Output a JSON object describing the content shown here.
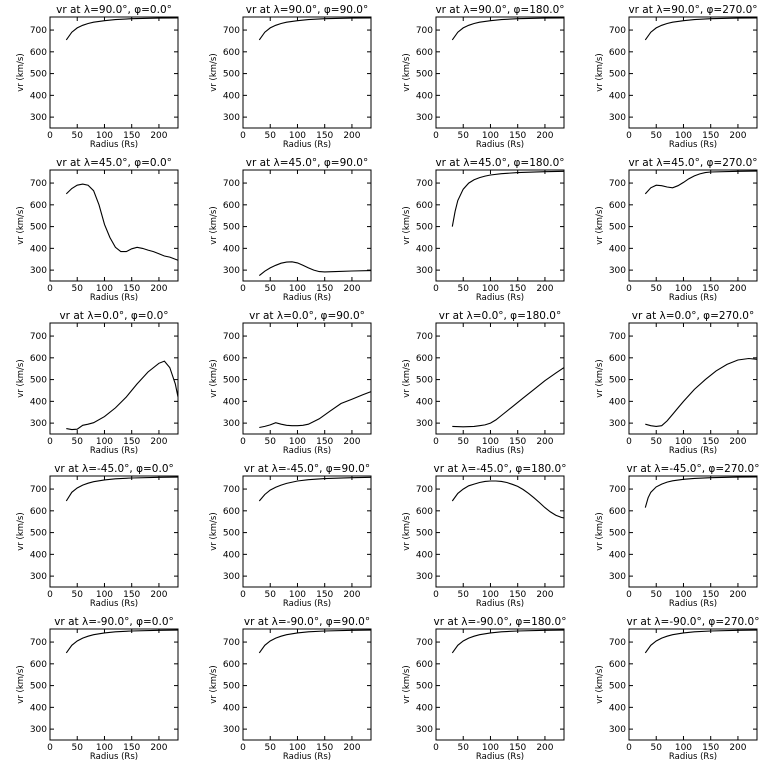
{
  "chart_data": {
    "type": "line",
    "layout": "5 rows x 4 columns of small multiples",
    "xlabel": "Radius (Rs)",
    "ylabel": "vr (km/s)",
    "xlim": [
      0,
      235
    ],
    "ylim": [
      250,
      760
    ],
    "xticks": [
      0,
      50,
      100,
      150,
      200
    ],
    "yticks": [
      300,
      400,
      500,
      600,
      700
    ],
    "panels": [
      {
        "title": "vr at λ=90.0°, φ=0.0°",
        "x": [
          30,
          40,
          50,
          60,
          70,
          80,
          100,
          120,
          150,
          200,
          235
        ],
        "y": [
          655,
          690,
          710,
          722,
          730,
          736,
          743,
          748,
          752,
          755,
          756
        ]
      },
      {
        "title": "vr at λ=90.0°, φ=90.0°",
        "x": [
          30,
          40,
          50,
          60,
          70,
          80,
          100,
          120,
          150,
          200,
          235
        ],
        "y": [
          655,
          690,
          710,
          722,
          730,
          736,
          743,
          748,
          752,
          755,
          756
        ]
      },
      {
        "title": "vr at λ=90.0°, φ=180.0°",
        "x": [
          30,
          40,
          50,
          60,
          70,
          80,
          100,
          120,
          150,
          200,
          235
        ],
        "y": [
          655,
          690,
          710,
          722,
          730,
          736,
          743,
          748,
          752,
          755,
          756
        ]
      },
      {
        "title": "vr at λ=90.0°, φ=270.0°",
        "x": [
          30,
          40,
          50,
          60,
          70,
          80,
          100,
          120,
          150,
          200,
          235
        ],
        "y": [
          655,
          690,
          710,
          722,
          730,
          736,
          743,
          748,
          752,
          755,
          756
        ]
      },
      {
        "title": "vr at λ=45.0°, φ=0.0°",
        "x": [
          30,
          40,
          50,
          60,
          70,
          80,
          90,
          100,
          110,
          120,
          130,
          140,
          150,
          160,
          170,
          180,
          190,
          200,
          210,
          220,
          235
        ],
        "y": [
          650,
          675,
          690,
          695,
          690,
          665,
          600,
          510,
          450,
          405,
          385,
          385,
          398,
          405,
          400,
          392,
          385,
          375,
          365,
          360,
          345
        ]
      },
      {
        "title": "vr at λ=45.0°, φ=90.0°",
        "x": [
          30,
          40,
          50,
          60,
          70,
          80,
          90,
          100,
          110,
          120,
          130,
          140,
          150,
          170,
          200,
          235
        ],
        "y": [
          275,
          295,
          310,
          322,
          332,
          337,
          338,
          333,
          322,
          310,
          300,
          293,
          292,
          293,
          296,
          298
        ]
      },
      {
        "title": "vr at λ=45.0°, φ=180.0°",
        "x": [
          30,
          35,
          40,
          50,
          60,
          70,
          80,
          90,
          100,
          120,
          150,
          200,
          235
        ],
        "y": [
          500,
          570,
          620,
          672,
          700,
          715,
          725,
          732,
          737,
          743,
          748,
          752,
          754
        ]
      },
      {
        "title": "vr at λ=45.0°, φ=270.0°",
        "x": [
          30,
          40,
          50,
          60,
          70,
          80,
          90,
          100,
          110,
          120,
          130,
          140,
          150,
          200,
          235
        ],
        "y": [
          650,
          678,
          690,
          688,
          682,
          678,
          688,
          703,
          720,
          733,
          742,
          748,
          751,
          754,
          755
        ]
      },
      {
        "title": "vr at λ=0.0°, φ=0.0°",
        "x": [
          30,
          40,
          50,
          60,
          70,
          80,
          100,
          120,
          140,
          160,
          180,
          200,
          210,
          220,
          230,
          235
        ],
        "y": [
          275,
          270,
          272,
          290,
          295,
          302,
          330,
          370,
          420,
          480,
          535,
          575,
          585,
          555,
          480,
          420
        ]
      },
      {
        "title": "vr at λ=0.0°, φ=90.0°",
        "x": [
          30,
          40,
          50,
          60,
          70,
          80,
          90,
          100,
          110,
          120,
          140,
          160,
          180,
          200,
          220,
          235
        ],
        "y": [
          280,
          285,
          292,
          302,
          295,
          290,
          288,
          288,
          290,
          295,
          320,
          355,
          390,
          410,
          430,
          445
        ]
      },
      {
        "title": "vr at λ=0.0°, φ=180.0°",
        "x": [
          30,
          50,
          70,
          80,
          90,
          100,
          110,
          120,
          140,
          160,
          180,
          200,
          220,
          235
        ],
        "y": [
          285,
          283,
          285,
          288,
          292,
          300,
          315,
          335,
          375,
          415,
          455,
          495,
          530,
          555
        ]
      },
      {
        "title": "vr at λ=0.0°, φ=270.0°",
        "x": [
          30,
          40,
          50,
          60,
          70,
          80,
          90,
          100,
          120,
          140,
          160,
          180,
          200,
          220,
          235
        ],
        "y": [
          295,
          288,
          285,
          288,
          310,
          340,
          370,
          400,
          455,
          500,
          540,
          570,
          590,
          597,
          593
        ]
      },
      {
        "title": "vr at λ=-45.0°, φ=0.0°",
        "x": [
          30,
          40,
          50,
          60,
          70,
          80,
          100,
          120,
          150,
          200,
          235
        ],
        "y": [
          645,
          685,
          705,
          718,
          727,
          734,
          742,
          747,
          751,
          754,
          755
        ]
      },
      {
        "title": "vr at λ=-45.0°, φ=90.0°",
        "x": [
          30,
          40,
          50,
          60,
          70,
          80,
          100,
          120,
          150,
          200,
          235
        ],
        "y": [
          645,
          675,
          695,
          708,
          718,
          726,
          737,
          743,
          748,
          752,
          754
        ]
      },
      {
        "title": "vr at λ=-45.0°, φ=180.0°",
        "x": [
          30,
          40,
          50,
          60,
          70,
          80,
          90,
          100,
          110,
          120,
          130,
          140,
          150,
          160,
          170,
          180,
          190,
          200,
          210,
          220,
          230,
          235
        ],
        "y": [
          645,
          680,
          700,
          715,
          723,
          730,
          735,
          737,
          737,
          735,
          730,
          722,
          712,
          698,
          680,
          660,
          638,
          615,
          595,
          580,
          570,
          567
        ]
      },
      {
        "title": "vr at λ=-45.0°, φ=270.0°",
        "x": [
          30,
          35,
          40,
          50,
          60,
          70,
          80,
          100,
          120,
          150,
          200,
          235
        ],
        "y": [
          615,
          660,
          685,
          710,
          723,
          732,
          738,
          745,
          749,
          752,
          755,
          756
        ]
      },
      {
        "title": "vr at λ=-90.0°, φ=0.0°",
        "x": [
          30,
          40,
          50,
          60,
          70,
          80,
          100,
          120,
          150,
          200,
          235
        ],
        "y": [
          650,
          685,
          705,
          718,
          727,
          734,
          742,
          747,
          751,
          754,
          755
        ]
      },
      {
        "title": "vr at λ=-90.0°, φ=90.0°",
        "x": [
          30,
          40,
          50,
          60,
          70,
          80,
          100,
          120,
          150,
          200,
          235
        ],
        "y": [
          650,
          685,
          705,
          718,
          727,
          734,
          742,
          747,
          751,
          754,
          755
        ]
      },
      {
        "title": "vr at λ=-90.0°, φ=180.0°",
        "x": [
          30,
          40,
          50,
          60,
          70,
          80,
          100,
          120,
          150,
          200,
          235
        ],
        "y": [
          650,
          685,
          705,
          718,
          727,
          734,
          742,
          747,
          751,
          754,
          755
        ]
      },
      {
        "title": "vr at λ=-90.0°, φ=270.0°",
        "x": [
          30,
          40,
          50,
          60,
          70,
          80,
          100,
          120,
          150,
          200,
          235
        ],
        "y": [
          650,
          685,
          705,
          718,
          727,
          734,
          742,
          747,
          751,
          754,
          755
        ]
      }
    ]
  }
}
